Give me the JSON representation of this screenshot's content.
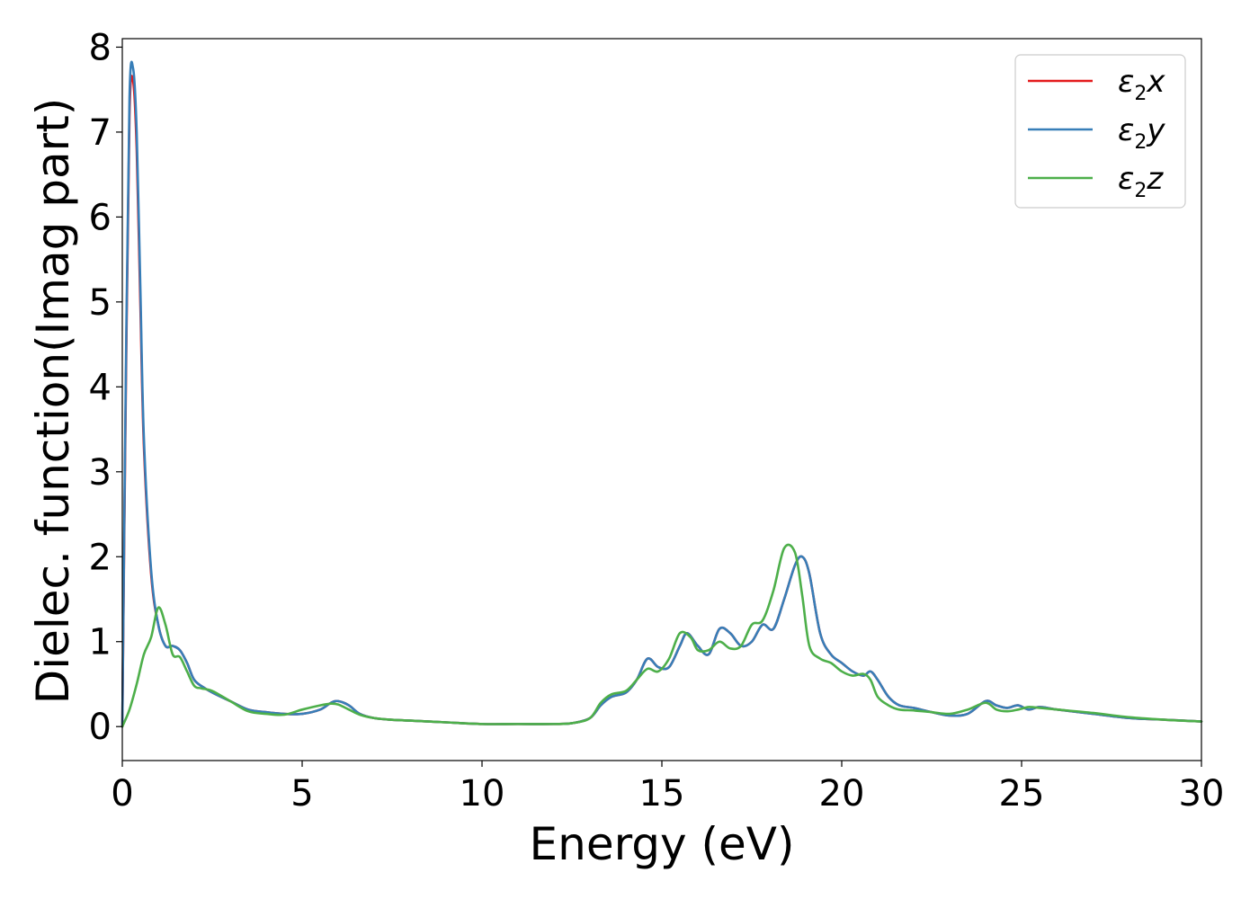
{
  "chart_data": {
    "type": "line",
    "title": "",
    "xlabel": "Energy (eV)",
    "ylabel": "Dielec. function(Imag part)",
    "xlim": [
      0,
      30
    ],
    "ylim": [
      -0.4,
      8.1
    ],
    "xticks": [
      "0",
      "5",
      "10",
      "15",
      "20",
      "25",
      "30"
    ],
    "yticks": [
      "0",
      "1",
      "2",
      "3",
      "4",
      "5",
      "6",
      "7",
      "8"
    ],
    "grid": false,
    "legend_position": "top-right",
    "series": [
      {
        "name": "ε2x",
        "label_main": "ε",
        "label_sub": "2",
        "label_tail": "x",
        "color": "#e41a1c",
        "x": [
          0,
          0.1,
          0.2,
          0.3,
          0.4,
          0.5,
          0.6,
          0.8,
          1.0,
          1.2,
          1.4,
          1.6,
          1.8,
          2.0,
          2.3,
          2.6,
          3.0,
          3.5,
          4.0,
          4.5,
          5.0,
          5.5,
          5.8,
          6.0,
          6.3,
          6.6,
          7.0,
          7.5,
          8.0,
          9.0,
          10.0,
          11.0,
          12.0,
          12.5,
          13.0,
          13.3,
          13.6,
          14.0,
          14.3,
          14.6,
          14.9,
          15.2,
          15.5,
          15.7,
          16.0,
          16.3,
          16.6,
          16.9,
          17.2,
          17.5,
          17.8,
          18.1,
          18.4,
          18.7,
          18.9,
          19.1,
          19.4,
          19.7,
          20.0,
          20.3,
          20.6,
          20.8,
          21.0,
          21.3,
          21.6,
          22.0,
          22.5,
          23.0,
          23.5,
          24.0,
          24.3,
          24.6,
          24.9,
          25.2,
          25.5,
          26.0,
          27.0,
          28.0,
          29.0,
          30.0
        ],
        "values": [
          0,
          4.0,
          7.2,
          7.6,
          6.8,
          5.0,
          3.3,
          1.8,
          1.2,
          0.95,
          0.95,
          0.9,
          0.75,
          0.55,
          0.45,
          0.38,
          0.3,
          0.2,
          0.17,
          0.15,
          0.15,
          0.2,
          0.28,
          0.3,
          0.25,
          0.15,
          0.1,
          0.08,
          0.07,
          0.05,
          0.03,
          0.03,
          0.03,
          0.04,
          0.1,
          0.25,
          0.35,
          0.4,
          0.55,
          0.8,
          0.7,
          0.7,
          0.95,
          1.1,
          0.95,
          0.85,
          1.15,
          1.1,
          0.95,
          1.0,
          1.2,
          1.15,
          1.5,
          1.9,
          2.0,
          1.8,
          1.1,
          0.85,
          0.75,
          0.65,
          0.6,
          0.65,
          0.55,
          0.35,
          0.25,
          0.22,
          0.17,
          0.13,
          0.15,
          0.3,
          0.25,
          0.22,
          0.25,
          0.2,
          0.23,
          0.2,
          0.15,
          0.1,
          0.08,
          0.06
        ]
      },
      {
        "name": "ε2y",
        "label_main": "ε",
        "label_sub": "2",
        "label_tail": "y",
        "color": "#377eb8",
        "x": [
          0,
          0.1,
          0.2,
          0.3,
          0.4,
          0.5,
          0.6,
          0.8,
          1.0,
          1.2,
          1.4,
          1.6,
          1.8,
          2.0,
          2.3,
          2.6,
          3.0,
          3.5,
          4.0,
          4.5,
          5.0,
          5.5,
          5.8,
          6.0,
          6.3,
          6.6,
          7.0,
          7.5,
          8.0,
          9.0,
          10.0,
          11.0,
          12.0,
          12.5,
          13.0,
          13.3,
          13.6,
          14.0,
          14.3,
          14.6,
          14.9,
          15.2,
          15.5,
          15.7,
          16.0,
          16.3,
          16.6,
          16.9,
          17.2,
          17.5,
          17.8,
          18.1,
          18.4,
          18.7,
          18.9,
          19.1,
          19.4,
          19.7,
          20.0,
          20.3,
          20.6,
          20.8,
          21.0,
          21.3,
          21.6,
          22.0,
          22.5,
          23.0,
          23.5,
          24.0,
          24.3,
          24.6,
          24.9,
          25.2,
          25.5,
          26.0,
          27.0,
          28.0,
          29.0,
          30.0
        ],
        "values": [
          0,
          4.2,
          7.4,
          7.75,
          7.0,
          5.2,
          3.4,
          1.85,
          1.2,
          0.95,
          0.95,
          0.9,
          0.75,
          0.55,
          0.45,
          0.38,
          0.3,
          0.2,
          0.17,
          0.15,
          0.15,
          0.2,
          0.28,
          0.3,
          0.25,
          0.15,
          0.1,
          0.08,
          0.07,
          0.05,
          0.03,
          0.03,
          0.03,
          0.04,
          0.1,
          0.25,
          0.35,
          0.4,
          0.55,
          0.8,
          0.7,
          0.7,
          0.95,
          1.1,
          0.95,
          0.85,
          1.15,
          1.1,
          0.95,
          1.0,
          1.2,
          1.15,
          1.5,
          1.9,
          2.0,
          1.8,
          1.1,
          0.85,
          0.75,
          0.65,
          0.6,
          0.65,
          0.55,
          0.35,
          0.25,
          0.22,
          0.17,
          0.13,
          0.15,
          0.3,
          0.25,
          0.22,
          0.25,
          0.2,
          0.23,
          0.2,
          0.15,
          0.1,
          0.08,
          0.06
        ]
      },
      {
        "name": "ε2z",
        "label_main": "ε",
        "label_sub": "2",
        "label_tail": "z",
        "color": "#4daf4a",
        "x": [
          0,
          0.2,
          0.4,
          0.6,
          0.8,
          1.0,
          1.2,
          1.4,
          1.6,
          1.8,
          2.0,
          2.2,
          2.5,
          3.0,
          3.5,
          4.0,
          4.5,
          5.0,
          5.5,
          5.8,
          6.0,
          6.3,
          6.6,
          7.0,
          7.5,
          8.0,
          9.0,
          10.0,
          11.0,
          12.0,
          12.5,
          13.0,
          13.3,
          13.6,
          14.0,
          14.3,
          14.6,
          14.9,
          15.2,
          15.5,
          15.8,
          16.0,
          16.3,
          16.6,
          16.9,
          17.2,
          17.5,
          17.8,
          18.1,
          18.4,
          18.7,
          18.9,
          19.1,
          19.4,
          19.7,
          20.0,
          20.3,
          20.6,
          20.8,
          21.0,
          21.3,
          21.6,
          22.0,
          22.5,
          23.0,
          23.5,
          24.0,
          24.3,
          24.6,
          24.9,
          25.2,
          25.5,
          26.0,
          27.0,
          28.0,
          29.0,
          30.0
        ],
        "values": [
          0.0,
          0.2,
          0.5,
          0.85,
          1.05,
          1.4,
          1.2,
          0.85,
          0.82,
          0.65,
          0.48,
          0.45,
          0.42,
          0.3,
          0.18,
          0.15,
          0.14,
          0.2,
          0.25,
          0.27,
          0.26,
          0.2,
          0.14,
          0.1,
          0.08,
          0.07,
          0.05,
          0.03,
          0.03,
          0.03,
          0.04,
          0.1,
          0.28,
          0.38,
          0.42,
          0.55,
          0.68,
          0.65,
          0.8,
          1.1,
          1.05,
          0.9,
          0.9,
          1.0,
          0.92,
          0.95,
          1.2,
          1.25,
          1.6,
          2.1,
          2.05,
          1.55,
          0.95,
          0.8,
          0.75,
          0.65,
          0.6,
          0.62,
          0.55,
          0.35,
          0.25,
          0.2,
          0.19,
          0.17,
          0.15,
          0.2,
          0.28,
          0.2,
          0.18,
          0.2,
          0.23,
          0.22,
          0.2,
          0.16,
          0.11,
          0.08,
          0.06
        ]
      }
    ]
  }
}
